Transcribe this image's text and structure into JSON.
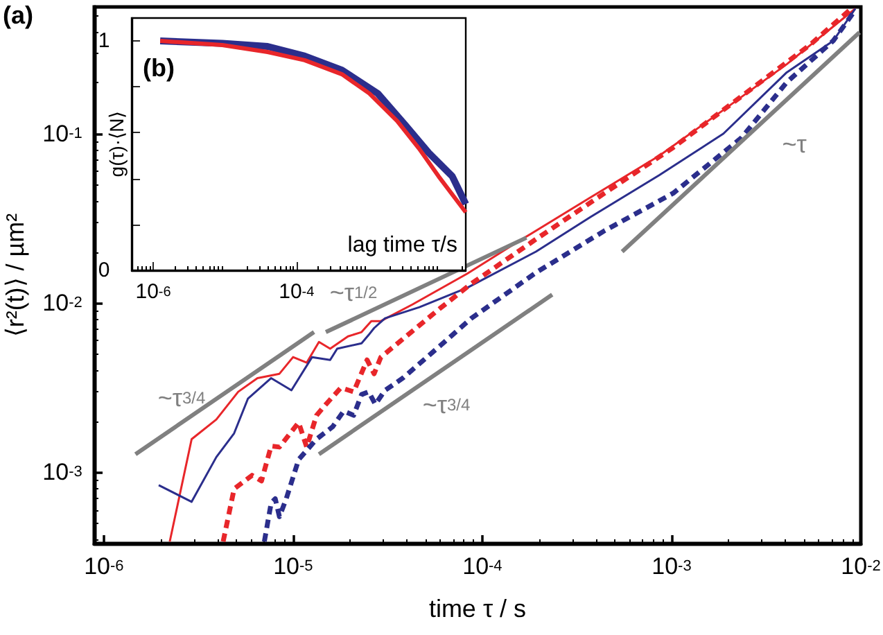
{
  "chart_data": [
    {
      "type": "line",
      "title": "(a)",
      "xlabel": "time τ / s",
      "ylabel": "⟨r²(t)⟩ / µm²",
      "log": "xy",
      "xlim": [
        8.9e-07,
        0.01
      ],
      "ylim": [
        0.00038,
        0.56
      ],
      "xticks": [
        {
          "value": 1e-06,
          "label": "10$^{-6}$"
        },
        {
          "value": 1e-05,
          "label": "10$^{-5}$"
        },
        {
          "value": 0.0001,
          "label": "10$^{-4}$"
        },
        {
          "value": 0.001,
          "label": "10$^{-3}$"
        },
        {
          "value": 0.01,
          "label": "10$^{-2}$"
        }
      ],
      "yticks": [
        {
          "value": 0.001,
          "label": "10$^{-3}$"
        },
        {
          "value": 0.01,
          "label": "10$^{-2}$"
        },
        {
          "value": 0.1,
          "label": "10$^{-1}$"
        }
      ],
      "series": [
        {
          "color": "#e8262a",
          "x": [
            2.23e-06,
            2.91e-06,
            3.93e-06,
            5.13e-06,
            6.48e-06,
            8.47e-06,
            1e-05,
            1.18e-05,
            1.37e-05,
            1.57e-05,
            1.95e-05,
            2.3e-05,
            2.59e-05,
            2.91e-05,
            4.27e-05,
            8.32e-05,
            0.000162,
            0.000373,
            0.00086,
            0.00188,
            0.00406,
            0.00935
          ],
          "values": [
            0.00039,
            0.00157,
            0.00205,
            0.00299,
            0.0036,
            0.00382,
            0.00479,
            0.00444,
            0.00589,
            0.00537,
            0.00635,
            0.00673,
            0.00782,
            0.00782,
            0.0098,
            0.0149,
            0.0238,
            0.042,
            0.074,
            0.138,
            0.257,
            0.547
          ]
        },
        {
          "color": "#2b2e8c",
          "x": [
            1.95e-06,
            2.91e-06,
            3.93e-06,
            4.88e-06,
            5.77e-06,
            7.66e-06,
            9.8e-06,
            1.26e-05,
            1.57e-05,
            1.71e-05,
            2.3e-05,
            2.51e-05,
            2.68e-05,
            3.06e-05,
            4.65e-05,
            8.32e-05,
            0.000192,
            0.000373,
            0.00086,
            0.00188,
            0.00406,
            0.00716,
            0.00935
          ],
          "values": [
            0.00084,
            0.00067,
            0.00123,
            0.0017,
            0.00272,
            0.0036,
            0.00305,
            0.00479,
            0.00461,
            0.00537,
            0.00578,
            0.00648,
            0.00711,
            0.00812,
            0.00945,
            0.0123,
            0.0201,
            0.0322,
            0.0568,
            0.1,
            0.23,
            0.354,
            0.547
          ]
        },
        {
          "color": "#e8262a",
          "line_style": "dashed",
          "x": [
            4.27e-06,
            4.88e-06,
            6.07e-06,
            6.81e-06,
            7.66e-06,
            8.47e-06,
            1.07e-05,
            1.18e-05,
            1.33e-05,
            1.49e-05,
            1.79e-05,
            2.09e-05,
            2.46e-05,
            2.68e-05,
            2.91e-05,
            3.8e-05,
            5.96e-05,
            8.75e-05,
            0.000192,
            0.000442,
            0.00102,
            0.00234,
            0.0054,
            0.0089
          ],
          "values": [
            0.00039,
            0.000798,
            0.00096,
            0.00089,
            0.00143,
            0.00141,
            0.00197,
            0.00141,
            0.00217,
            0.00252,
            0.00316,
            0.00299,
            0.00461,
            0.00382,
            0.00479,
            0.00612,
            0.00927,
            0.013,
            0.0238,
            0.0445,
            0.0828,
            0.166,
            0.335,
            0.547
          ]
        },
        {
          "color": "#2b2e8c",
          "line_style": "dashed",
          "x": [
            7.05e-06,
            7.66e-06,
            8.05e-06,
            8.47e-06,
            9.2e-06,
            1.07e-05,
            1.33e-05,
            1.62e-05,
            1.85e-05,
            2.09e-05,
            2.3e-05,
            2.51e-05,
            2.72e-05,
            3.06e-05,
            3.8e-05,
            5.96e-05,
            8.75e-05,
            0.000192,
            0.000442,
            0.00102,
            0.00234,
            0.00406,
            0.00716,
            0.00935
          ],
          "values": [
            0.00039,
            0.00066,
            0.000698,
            0.000547,
            0.000698,
            0.00119,
            0.00157,
            0.00186,
            0.0023,
            0.00217,
            0.00288,
            0.00299,
            0.00252,
            0.00305,
            0.0036,
            0.00557,
            0.00812,
            0.0151,
            0.0267,
            0.0445,
            0.0945,
            0.201,
            0.354,
            0.537
          ]
        },
        {
          "color": "#808080",
          "x": [
            1.47e-06,
            1.29e-05
          ],
          "values": [
            0.00128,
            0.00673
          ]
        },
        {
          "color": "#808080",
          "x": [
            1.49e-05,
            0.000171
          ],
          "values": [
            0.00673,
            0.0243
          ]
        },
        {
          "color": "#808080",
          "x": [
            1.37e-05,
            0.000234
          ],
          "values": [
            0.00128,
            0.0112
          ]
        },
        {
          "color": "#808080",
          "x": [
            0.000548,
            0.00984
          ],
          "values": [
            0.0201,
            0.396
          ]
        }
      ],
      "annotations": [
        "~τ$^{3/4}$",
        "~τ$^{1/2}$",
        "~τ$^{3/4}$",
        "~τ"
      ]
    },
    {
      "type": "line",
      "title": "(b)",
      "xlabel": "lag time τ/s",
      "ylabel": "g(τ)·⟨N⟩",
      "log": "x",
      "xlim": [
        5e-07,
        0.023
      ],
      "ylim": [
        0,
        1.1
      ],
      "xticks": [
        {
          "value": 1e-06,
          "label": "10$^{-6}$"
        },
        {
          "value": 0.0001,
          "label": "10$^{-4}$"
        }
      ],
      "yticks": [
        0,
        {
          "value": 0.2,
          "label": null
        },
        {
          "value": 0.4,
          "label": null
        },
        {
          "value": 0.6,
          "label": null
        },
        {
          "value": 0.8,
          "label": null
        },
        1
      ],
      "series": [
        {
          "color": "#2b2e8c",
          "x": [
            1.25e-06,
            9.2e-06,
            3.94e-05,
            0.00013,
            0.00043,
            0.00136,
            0.0033,
            0.007,
            0.0149,
            0.023
          ],
          "values": [
            1.0,
            0.99,
            0.976,
            0.934,
            0.873,
            0.771,
            0.633,
            0.512,
            0.41,
            0.289
          ]
        },
        {
          "color": "#e8262a",
          "x": [
            1.25e-06,
            9.2e-06,
            3.94e-05,
            0.00013,
            0.00043,
            0.00104,
            0.00254,
            0.00515,
            0.0096,
            0.023
          ],
          "values": [
            1.0,
            0.982,
            0.952,
            0.916,
            0.855,
            0.771,
            0.651,
            0.53,
            0.41,
            0.253
          ]
        }
      ]
    }
  ]
}
